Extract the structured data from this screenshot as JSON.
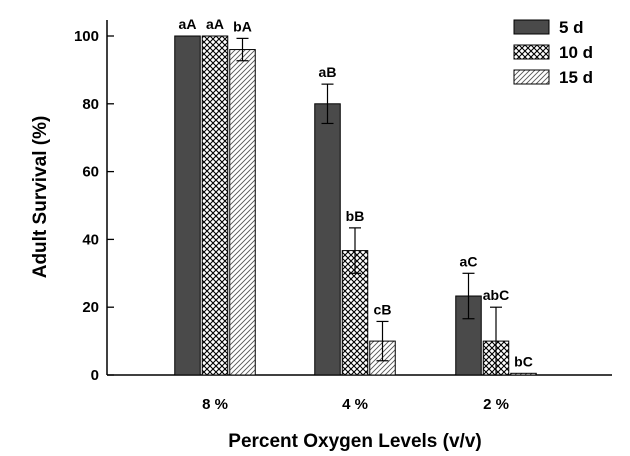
{
  "chart_data": {
    "type": "bar",
    "xlabel": "Percent Oxygen Levels (v/v)",
    "ylabel": "Adult Survival (%)",
    "ylim": [
      0,
      100
    ],
    "yticks": [
      0,
      20,
      40,
      60,
      80,
      100
    ],
    "categories": [
      "8 %",
      "4 %",
      "2 %"
    ],
    "series": [
      {
        "name": "5 d",
        "pattern": "solid",
        "values": [
          100,
          80,
          23.3
        ],
        "errors": [
          0,
          5.8,
          6.7
        ],
        "labels": [
          "aA",
          "aB",
          "aC"
        ]
      },
      {
        "name": "10 d",
        "pattern": "crosshatch",
        "values": [
          100,
          36.7,
          10
        ],
        "errors": [
          0,
          6.7,
          10
        ],
        "labels": [
          "aA",
          "bB",
          "abC"
        ]
      },
      {
        "name": "15 d",
        "pattern": "diagonal",
        "values": [
          96,
          10,
          0.5
        ],
        "errors": [
          3.3,
          5.8,
          0
        ],
        "labels": [
          "bA",
          "cB",
          "bC"
        ]
      }
    ],
    "legend_position": "top-right",
    "grid": false,
    "colors": {
      "solid": "#4a4a4a",
      "pattern_ink": "#000000",
      "background": "#ffffff"
    }
  }
}
